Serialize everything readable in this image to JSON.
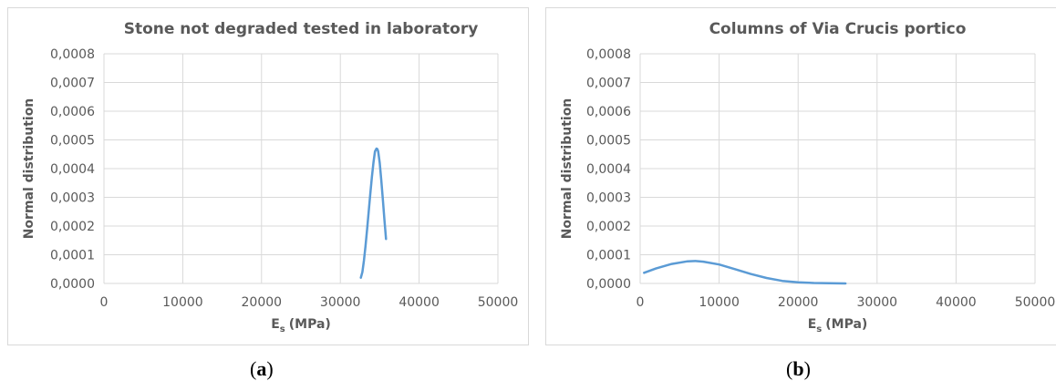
{
  "chart_data": [
    {
      "type": "line",
      "title": "Stone not degraded tested in laboratory",
      "ylabel": "Normal distribution",
      "xlabel_main": "E",
      "xlabel_sub": "s",
      "xlabel_unit": "(MPa)",
      "xlim": [
        0,
        50000
      ],
      "ylim": [
        0,
        0.0008
      ],
      "xticks": [
        0,
        10000,
        20000,
        30000,
        40000,
        50000
      ],
      "xtick_labels": [
        "0",
        "10000",
        "20000",
        "30000",
        "40000",
        "50000"
      ],
      "yticks": [
        0,
        0.0001,
        0.0002,
        0.0003,
        0.0004,
        0.0005,
        0.0006,
        0.0007,
        0.0008
      ],
      "ytick_labels": [
        "0,0000",
        "0,0001",
        "0,0002",
        "0,0003",
        "0,0004",
        "0,0005",
        "0,0006",
        "0,0007",
        "0,0008"
      ],
      "grid": true,
      "series": [
        {
          "color": "#5b9bd5",
          "x": [
            32600,
            32800,
            33000,
            33200,
            33400,
            33600,
            33800,
            34000,
            34200,
            34400,
            34600,
            34700,
            34800,
            35000,
            35200,
            35400,
            35600,
            35800
          ],
          "y": [
            2e-05,
            4e-05,
            8e-05,
            0.00013,
            0.00019,
            0.00025,
            0.00031,
            0.00037,
            0.00042,
            0.00046,
            0.00047,
            0.000468,
            0.00046,
            0.00042,
            0.00036,
            0.00029,
            0.00022,
            0.000155
          ]
        }
      ]
    },
    {
      "type": "line",
      "title": "Columns of Via Crucis portico",
      "ylabel": "Normal distribution",
      "xlabel_main": "E",
      "xlabel_sub": "s",
      "xlabel_unit": "(MPa)",
      "xlim": [
        0,
        50000
      ],
      "ylim": [
        0,
        0.0008
      ],
      "xticks": [
        0,
        10000,
        20000,
        30000,
        40000,
        50000
      ],
      "xtick_labels": [
        "0",
        "10000",
        "20000",
        "30000",
        "40000",
        "50000"
      ],
      "yticks": [
        0,
        0.0001,
        0.0002,
        0.0003,
        0.0004,
        0.0005,
        0.0006,
        0.0007,
        0.0008
      ],
      "ytick_labels": [
        "0,0000",
        "0,0001",
        "0,0002",
        "0,0003",
        "0,0004",
        "0,0005",
        "0,0006",
        "0,0007",
        "0,0008"
      ],
      "grid": true,
      "series": [
        {
          "color": "#5b9bd5",
          "x": [
            500,
            2000,
            4000,
            6000,
            7000,
            8000,
            10000,
            12000,
            14000,
            16000,
            18000,
            20000,
            22000,
            24000,
            26000
          ],
          "y": [
            3.7e-05,
            5.2e-05,
            6.8e-05,
            7.7e-05,
            7.8e-05,
            7.6e-05,
            6.6e-05,
            5e-05,
            3.3e-05,
            1.9e-05,
            9e-06,
            4e-06,
            1.5e-06,
            5e-07,
            1e-07
          ]
        }
      ]
    }
  ],
  "captions": [
    {
      "open": "(",
      "letter": "a",
      "close": ")"
    },
    {
      "open": "(",
      "letter": "b",
      "close": ")"
    }
  ]
}
